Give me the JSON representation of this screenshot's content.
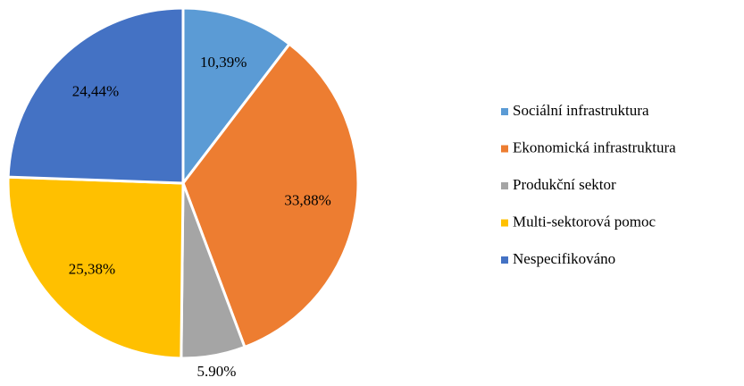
{
  "chart_data": {
    "type": "pie",
    "categories": [
      "Sociální infrastruktura",
      "Ekonomická infrastruktura",
      "Produkční sektor",
      "Multi-sektorová pomoc",
      "Nespecifikováno"
    ],
    "values": [
      10.39,
      33.88,
      5.9,
      25.38,
      24.44
    ],
    "value_labels": [
      "10,39%",
      "33,88%",
      "5.90%",
      "25,38%",
      "24,44%"
    ],
    "colors": [
      "#5b9bd5",
      "#ed7d31",
      "#a5a5a5",
      "#ffc000",
      "#4472c4"
    ],
    "legend": "right"
  }
}
